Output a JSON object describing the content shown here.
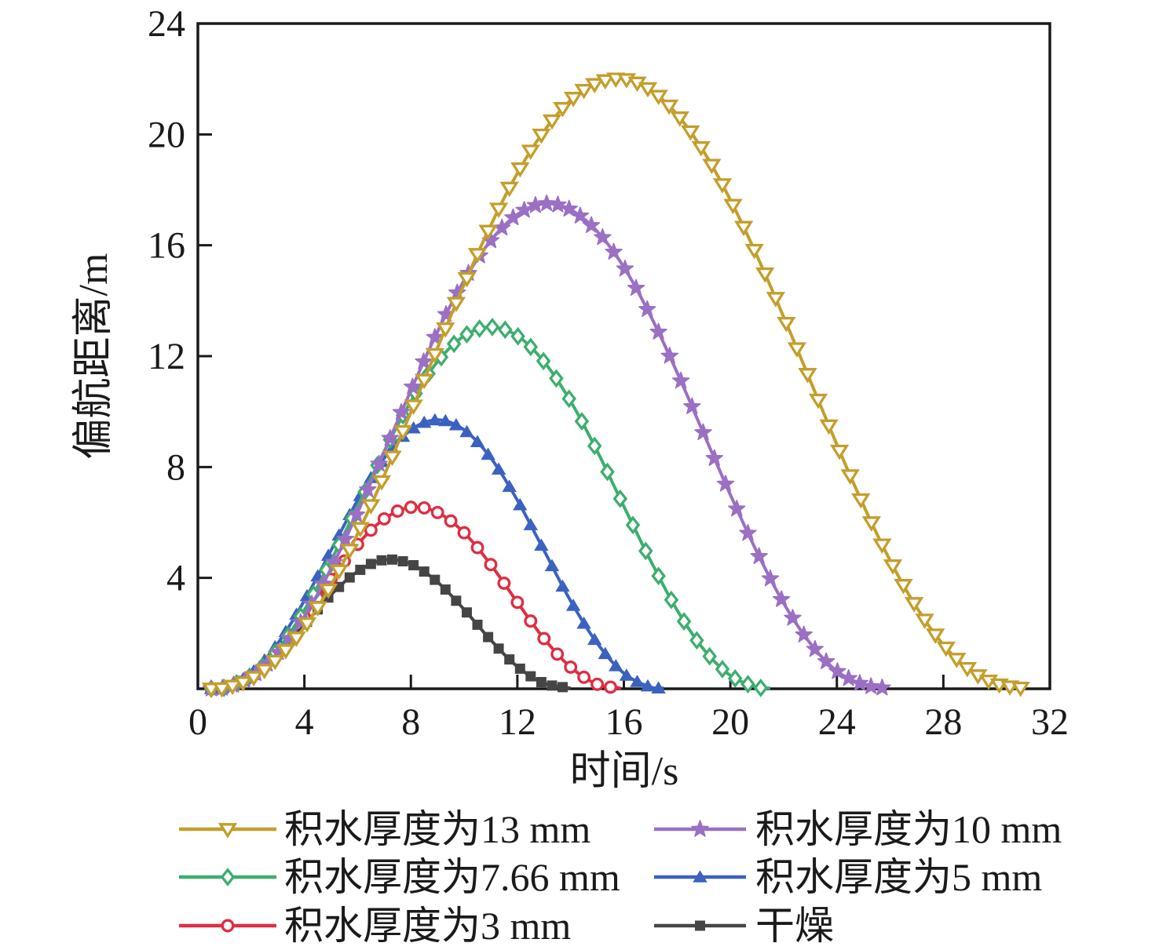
{
  "chart_data": {
    "type": "line",
    "title": "",
    "xlabel": "时间/s",
    "ylabel": "偏航距离/m",
    "xlim": [
      0,
      32
    ],
    "ylim": [
      0,
      24
    ],
    "xticks": [
      0,
      4,
      8,
      12,
      16,
      20,
      24,
      28,
      32
    ],
    "yticks": [
      4,
      8,
      12,
      16,
      20,
      24
    ],
    "grid": false,
    "legend_position": "below-two-columns",
    "axis_color": "#1a1a1a",
    "series": [
      {
        "key": "13mm",
        "name": "积水厚度为13 mm",
        "color": "#C49E2B",
        "marker": "triangle-down-open",
        "marker_step": 0.4,
        "peak": {
          "x": 16,
          "y": 22.0
        },
        "points": [
          [
            0.5,
            0
          ],
          [
            1,
            0.03
          ],
          [
            2,
            0.36
          ],
          [
            3,
            1.09
          ],
          [
            4,
            2.22
          ],
          [
            5,
            3.74
          ],
          [
            6,
            5.59
          ],
          [
            7,
            7.7
          ],
          [
            8,
            9.98
          ],
          [
            9,
            12.3
          ],
          [
            10,
            14.59
          ],
          [
            11,
            16.72
          ],
          [
            12,
            18.6
          ],
          [
            13,
            20.12
          ],
          [
            14,
            21.23
          ],
          [
            15,
            21.85
          ],
          [
            16,
            22.0
          ],
          [
            17,
            21.6
          ],
          [
            18,
            20.72
          ],
          [
            19,
            19.38
          ],
          [
            20,
            17.64
          ],
          [
            21,
            15.62
          ],
          [
            22,
            13.42
          ],
          [
            23,
            11.12
          ],
          [
            24,
            8.81
          ],
          [
            25,
            6.62
          ],
          [
            26,
            4.63
          ],
          [
            27,
            2.93
          ],
          [
            28,
            1.59
          ],
          [
            29,
            0.67
          ],
          [
            30,
            0.18
          ],
          [
            31,
            0.02
          ]
        ]
      },
      {
        "key": "10mm",
        "name": "积水厚度为10 mm",
        "color": "#9B6FC4",
        "marker": "star-filled",
        "marker_step": 0.42,
        "peak": {
          "x": 13.2,
          "y": 17.5
        },
        "points": [
          [
            0.5,
            0
          ],
          [
            1,
            0.04
          ],
          [
            2,
            0.43
          ],
          [
            3,
            1.29
          ],
          [
            4,
            2.61
          ],
          [
            5,
            4.33
          ],
          [
            6,
            6.36
          ],
          [
            7,
            8.55
          ],
          [
            8,
            10.76
          ],
          [
            9,
            12.88
          ],
          [
            10,
            14.73
          ],
          [
            11,
            16.17
          ],
          [
            12,
            17.11
          ],
          [
            13,
            17.5
          ],
          [
            14,
            17.28
          ],
          [
            15,
            16.5
          ],
          [
            16,
            15.21
          ],
          [
            17,
            13.46
          ],
          [
            18,
            11.41
          ],
          [
            19,
            9.2
          ],
          [
            20,
            7.0
          ],
          [
            21,
            4.93
          ],
          [
            22,
            3.09
          ],
          [
            23,
            1.64
          ],
          [
            24,
            0.64
          ],
          [
            25,
            0.15
          ],
          [
            25.8,
            0.02
          ]
        ]
      },
      {
        "key": "7.66mm",
        "name": "积水厚度为7.66 mm",
        "color": "#3DAE6E",
        "marker": "diamond-open",
        "marker_step": 0.48,
        "peak": {
          "x": 11,
          "y": 13.05
        },
        "points": [
          [
            0.5,
            0
          ],
          [
            1,
            0.04
          ],
          [
            2,
            0.48
          ],
          [
            3,
            1.42
          ],
          [
            4,
            2.84
          ],
          [
            5,
            4.62
          ],
          [
            6,
            6.58
          ],
          [
            7,
            8.57
          ],
          [
            8,
            10.37
          ],
          [
            9,
            11.8
          ],
          [
            10,
            12.73
          ],
          [
            11,
            13.05
          ],
          [
            12,
            12.73
          ],
          [
            13,
            11.8
          ],
          [
            14,
            10.37
          ],
          [
            15,
            8.57
          ],
          [
            16,
            6.58
          ],
          [
            17,
            4.63
          ],
          [
            18,
            2.84
          ],
          [
            19,
            1.42
          ],
          [
            20,
            0.48
          ],
          [
            21,
            0.06
          ],
          [
            21.5,
            0.02
          ]
        ]
      },
      {
        "key": "5mm",
        "name": "积水厚度为5 mm",
        "color": "#3B62C1",
        "marker": "triangle-up-filled",
        "marker_step": 0.4,
        "peak": {
          "x": 9,
          "y": 9.7
        },
        "points": [
          [
            0.5,
            0
          ],
          [
            1,
            0.05
          ],
          [
            2,
            0.56
          ],
          [
            3,
            1.64
          ],
          [
            4,
            3.18
          ],
          [
            5,
            4.99
          ],
          [
            6,
            6.8
          ],
          [
            7,
            8.32
          ],
          [
            8,
            9.34
          ],
          [
            9,
            9.7
          ],
          [
            10,
            9.34
          ],
          [
            11,
            8.33
          ],
          [
            12,
            6.8
          ],
          [
            13,
            4.99
          ],
          [
            14,
            3.17
          ],
          [
            15,
            1.64
          ],
          [
            16,
            0.56
          ],
          [
            17,
            0.06
          ],
          [
            17.5,
            0.02
          ]
        ]
      },
      {
        "key": "3mm",
        "name": "积水厚度为3 mm",
        "color": "#DE2E43",
        "marker": "circle-open",
        "marker_step": 0.5,
        "peak": {
          "x": 8.3,
          "y": 6.55
        },
        "points": [
          [
            0.5,
            0
          ],
          [
            1,
            0.04
          ],
          [
            2,
            0.47
          ],
          [
            3,
            1.35
          ],
          [
            4,
            2.59
          ],
          [
            5,
            3.95
          ],
          [
            6,
            5.21
          ],
          [
            7,
            6.13
          ],
          [
            8,
            6.55
          ],
          [
            9,
            6.36
          ],
          [
            10,
            5.63
          ],
          [
            11,
            4.48
          ],
          [
            12,
            3.12
          ],
          [
            13,
            1.81
          ],
          [
            14,
            0.78
          ],
          [
            15,
            0.16
          ],
          [
            15.9,
            0.02
          ]
        ]
      },
      {
        "key": "dry",
        "name": "干燥",
        "color": "#454545",
        "marker": "square-filled",
        "marker_step": 0.4,
        "peak": {
          "x": 7.1,
          "y": 4.65
        },
        "points": [
          [
            0.5,
            0
          ],
          [
            1,
            0.04
          ],
          [
            2,
            0.44
          ],
          [
            3,
            1.25
          ],
          [
            4,
            2.31
          ],
          [
            5,
            3.39
          ],
          [
            6,
            4.23
          ],
          [
            7,
            4.65
          ],
          [
            8,
            4.5
          ],
          [
            9,
            3.85
          ],
          [
            10,
            2.86
          ],
          [
            11,
            1.76
          ],
          [
            12,
            0.8
          ],
          [
            13,
            0.2
          ],
          [
            14,
            0.02
          ]
        ]
      }
    ]
  }
}
